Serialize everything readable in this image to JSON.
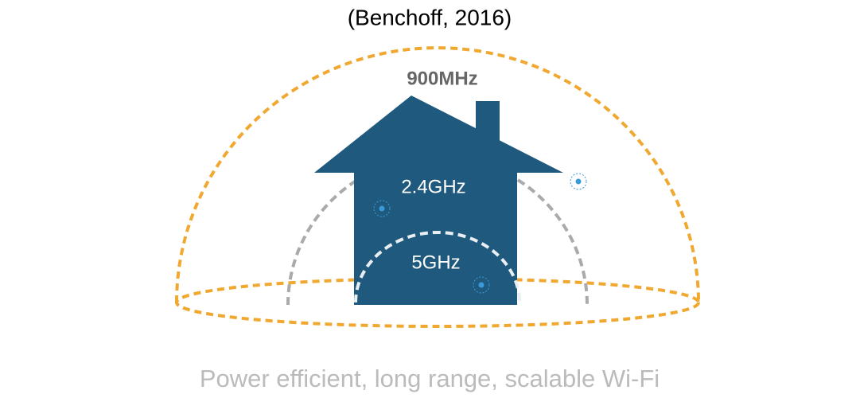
{
  "caption": "(Benchoff, 2016)",
  "bands": [
    {
      "label": "900MHz"
    },
    {
      "label": "2.4GHz"
    },
    {
      "label": "5GHz"
    }
  ],
  "footer": "Power efficient, long range, scalable Wi-Fi"
}
